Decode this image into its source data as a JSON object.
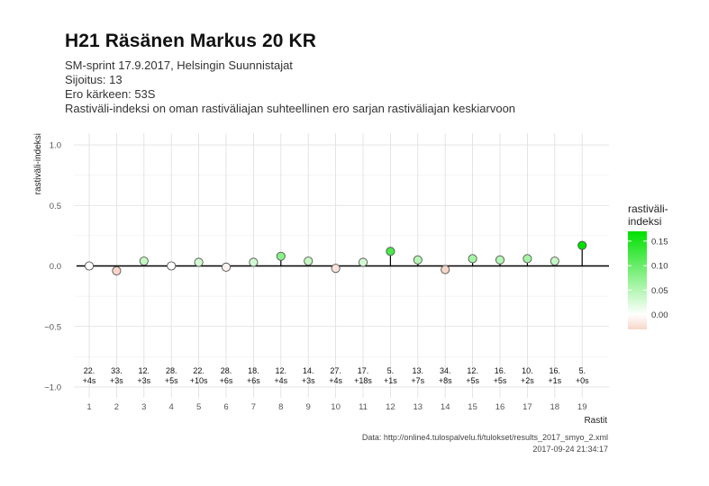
{
  "title": "H21 Räsänen Markus 20 KR",
  "subtitle_lines": [
    "SM-sprint 17.9.2017, Helsingin Suunnistajat",
    "Sijoitus: 13",
    "Ero kärkeen: 53S",
    "Rastiväli-indeksi on oman rastiväliajan suhteellinen ero sarjan rastiväliajan keskiarvoon"
  ],
  "caption_source": "Data: http://online4.tulospalvelu.fi/tulokset/results_2017_smyo_2.xml",
  "caption_timestamp": "2017-09-24 21:34:17",
  "legend": {
    "title_line1": "rastiväli-",
    "title_line2": "indeksi",
    "ticks": [
      "0.15",
      "0.10",
      "0.05",
      "0.00"
    ],
    "tick_values": [
      0.15,
      0.1,
      0.05,
      0.0
    ],
    "range": [
      -0.03,
      0.17
    ]
  },
  "colors": {
    "low": "#f7d6c8",
    "mid": "#ffffff",
    "high": "#00e000",
    "baseline": "#000000",
    "grid": "#dedede"
  },
  "chart_data": {
    "type": "scatter",
    "style": "lollipop",
    "xlabel": "Rastit",
    "ylabel": "rastiväli-indeksi",
    "ylim": [
      -1.0,
      1.0
    ],
    "yticks": [
      1.0,
      0.5,
      0.0,
      -0.5,
      -1.0
    ],
    "ytick_labels": [
      "1.0",
      "0.5",
      "0.0",
      "−0.5",
      "−1.0"
    ],
    "x": [
      1,
      2,
      3,
      4,
      5,
      6,
      7,
      8,
      9,
      10,
      11,
      12,
      13,
      14,
      15,
      16,
      17,
      18,
      19
    ],
    "y": [
      0.0,
      -0.04,
      0.04,
      0.0,
      0.03,
      -0.01,
      0.03,
      0.08,
      0.04,
      -0.02,
      0.03,
      0.12,
      0.05,
      -0.03,
      0.06,
      0.05,
      0.06,
      0.04,
      0.17
    ],
    "placements": [
      "22.",
      "33.",
      "12.",
      "28.",
      "22.",
      "28.",
      "18.",
      "12.",
      "14.",
      "27.",
      "17.",
      "5.",
      "13.",
      "34.",
      "12.",
      "16.",
      "10.",
      "16.",
      "5."
    ],
    "time_diffs": [
      "+4s",
      "+3s",
      "+3s",
      "+5s",
      "+10s",
      "+6s",
      "+6s",
      "+4s",
      "+3s",
      "+4s",
      "+18s",
      "+1s",
      "+7s",
      "+8s",
      "+5s",
      "+5s",
      "+2s",
      "+1s",
      "+0s"
    ],
    "grid": true
  }
}
